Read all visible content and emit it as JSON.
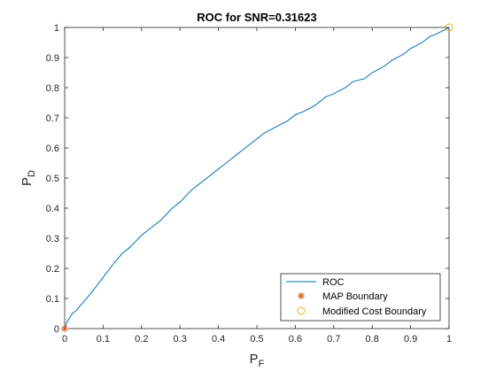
{
  "chart_data": {
    "type": "line",
    "title": "ROC for SNR=0.31623",
    "xlabel_main": "P",
    "xlabel_sub": "F",
    "ylabel_main": "P",
    "ylabel_sub": "D",
    "xlim": [
      0,
      1
    ],
    "ylim": [
      0,
      1
    ],
    "xticks": [
      "0",
      "0.1",
      "0.2",
      "0.3",
      "0.4",
      "0.5",
      "0.6",
      "0.7",
      "0.8",
      "0.9",
      "1"
    ],
    "yticks": [
      "0",
      "0.1",
      "0.2",
      "0.3",
      "0.4",
      "0.5",
      "0.6",
      "0.7",
      "0.8",
      "0.9",
      "1"
    ],
    "grid": false,
    "legend_position": "bottom-right",
    "series": [
      {
        "name": "ROC",
        "color": "#0072BD",
        "marker": "none",
        "x": [
          0,
          0.005,
          0.01,
          0.02,
          0.03,
          0.05,
          0.07,
          0.1,
          0.13,
          0.15,
          0.17,
          0.2,
          0.23,
          0.25,
          0.28,
          0.3,
          0.33,
          0.35,
          0.38,
          0.4,
          0.43,
          0.45,
          0.48,
          0.5,
          0.52,
          0.55,
          0.58,
          0.6,
          0.62,
          0.65,
          0.68,
          0.7,
          0.73,
          0.75,
          0.78,
          0.8,
          0.83,
          0.85,
          0.88,
          0.9,
          0.93,
          0.95,
          0.97,
          1
        ],
        "y": [
          0,
          0.02,
          0.03,
          0.05,
          0.06,
          0.09,
          0.12,
          0.17,
          0.22,
          0.25,
          0.27,
          0.31,
          0.34,
          0.36,
          0.4,
          0.42,
          0.46,
          0.48,
          0.51,
          0.53,
          0.56,
          0.58,
          0.61,
          0.63,
          0.65,
          0.67,
          0.69,
          0.71,
          0.72,
          0.74,
          0.77,
          0.78,
          0.8,
          0.82,
          0.83,
          0.85,
          0.87,
          0.89,
          0.91,
          0.93,
          0.95,
          0.97,
          0.98,
          1
        ]
      },
      {
        "name": "MAP Boundary",
        "color": "#D95319",
        "marker": "asterisk",
        "x": [
          0
        ],
        "y": [
          0
        ]
      },
      {
        "name": "Modified Cost Boundary",
        "color": "#EDB120",
        "marker": "circle",
        "x": [
          1
        ],
        "y": [
          1
        ]
      }
    ]
  }
}
